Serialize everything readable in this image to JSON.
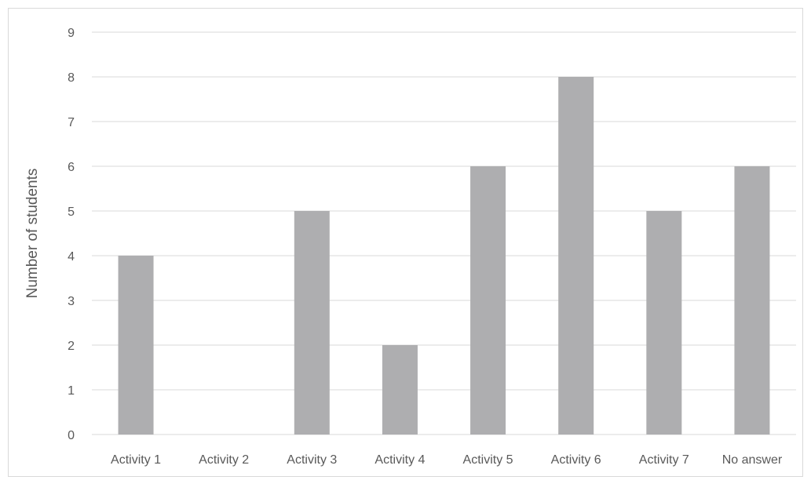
{
  "chart_data": {
    "type": "bar",
    "categories": [
      "Activity 1",
      "Activity 2",
      "Activity 3",
      "Activity 4",
      "Activity 5",
      "Activity 6",
      "Activity 7",
      "No answer"
    ],
    "values": [
      4,
      0,
      5,
      2,
      6,
      8,
      5,
      6
    ],
    "title": "",
    "xlabel": "",
    "ylabel": "Number of students",
    "ylim": [
      0,
      9
    ],
    "yticks": [
      0,
      1,
      2,
      3,
      4,
      5,
      6,
      7,
      8,
      9
    ],
    "grid": true,
    "legend": "none",
    "colors": {
      "bar": "#aeaeb0",
      "grid": "#d9d9d9",
      "text": "#595959"
    }
  }
}
